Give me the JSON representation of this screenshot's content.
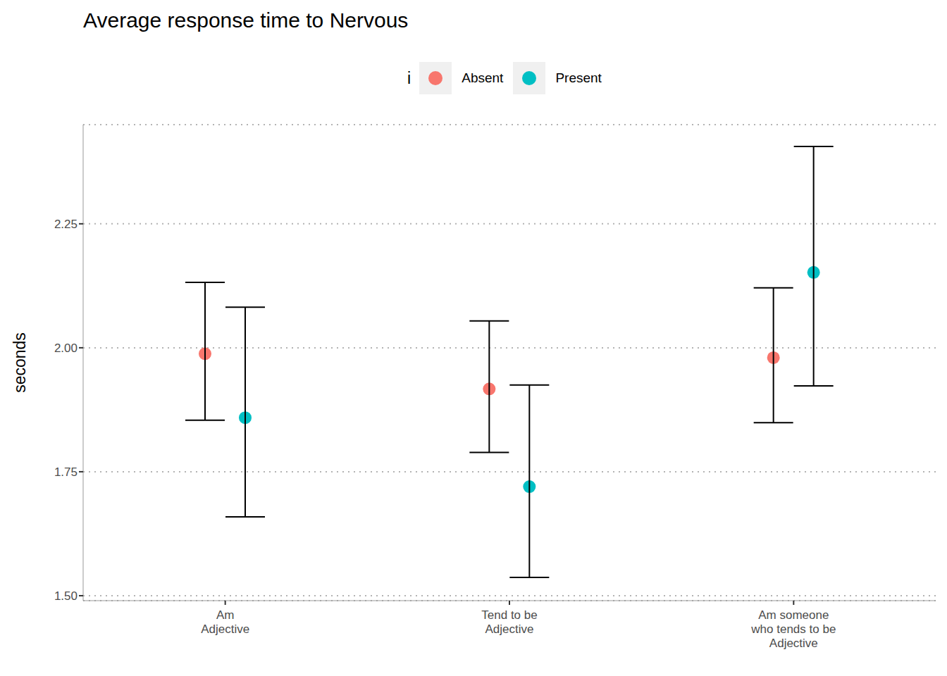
{
  "chart_data": {
    "type": "dot_errorbar",
    "title": "Average response time to Nervous",
    "y_label": "seconds",
    "legend_title": "i",
    "legend": "top",
    "grid": true,
    "categories": [
      "Am\nAdjective",
      "Tend to be\nAdjective",
      "Am someone\nwho tends to be\nAdjective"
    ],
    "series": [
      {
        "name": "Absent",
        "color": "#F8766D",
        "marker": "circle",
        "values": [
          1.988,
          1.917,
          1.98
        ],
        "lower": [
          1.854,
          1.789,
          1.849
        ],
        "upper": [
          2.132,
          2.054,
          2.121
        ]
      },
      {
        "name": "Present",
        "color": "#00BFC4",
        "marker": "circle",
        "values": [
          1.859,
          1.72,
          2.152
        ],
        "lower": [
          1.659,
          1.537,
          1.923
        ],
        "upper": [
          2.082,
          1.925,
          2.406
        ]
      }
    ],
    "ylim": [
      1.49,
      2.45
    ],
    "yticks": [
      {
        "value": 1.5,
        "label": "1.50"
      },
      1.75,
      {
        "value": 2,
        "label": "2.00"
      },
      2.25
    ]
  }
}
